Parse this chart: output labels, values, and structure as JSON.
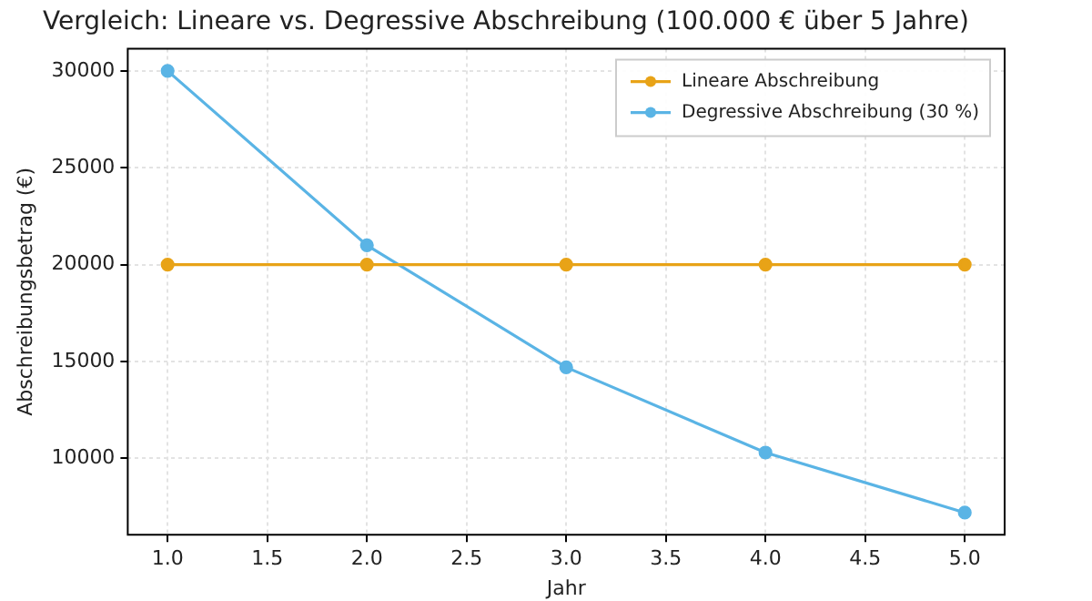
{
  "chart_data": {
    "type": "line",
    "title": "Vergleich: Lineare vs. Degressive Abschreibung (100.000 € über 5 Jahre)",
    "xlabel": "Jahr",
    "ylabel": "Abschreibungsbetrag (€)",
    "x": [
      1,
      2,
      3,
      4,
      5
    ],
    "series": [
      {
        "name": "Lineare Abschreibung",
        "color": "#e8a317",
        "values": [
          20000,
          20000,
          20000,
          20000,
          20000
        ]
      },
      {
        "name": "Degressive Abschreibung (30 %)",
        "color": "#5ab4e5",
        "values": [
          30000,
          21000,
          14700,
          10300,
          7200
        ]
      }
    ],
    "xlim": [
      0.8,
      5.2
    ],
    "xticks": [
      {
        "value": 1,
        "label": "1.0"
      },
      {
        "value": 1.5,
        "label": "1.5"
      },
      {
        "value": 2,
        "label": "2.0"
      },
      {
        "value": 2.5,
        "label": "2.5"
      },
      {
        "value": 3,
        "label": "3.0"
      },
      {
        "value": 3.5,
        "label": "3.5"
      },
      {
        "value": 4,
        "label": "4.0"
      },
      {
        "value": 4.5,
        "label": "4.5"
      },
      {
        "value": 5,
        "label": "5.0"
      }
    ],
    "ylim": [
      6060,
      31140
    ],
    "yticks": [
      10000,
      15000,
      20000,
      25000,
      30000
    ],
    "grid": true,
    "legend": "top right",
    "marker": "circle",
    "line_style": "solid"
  }
}
